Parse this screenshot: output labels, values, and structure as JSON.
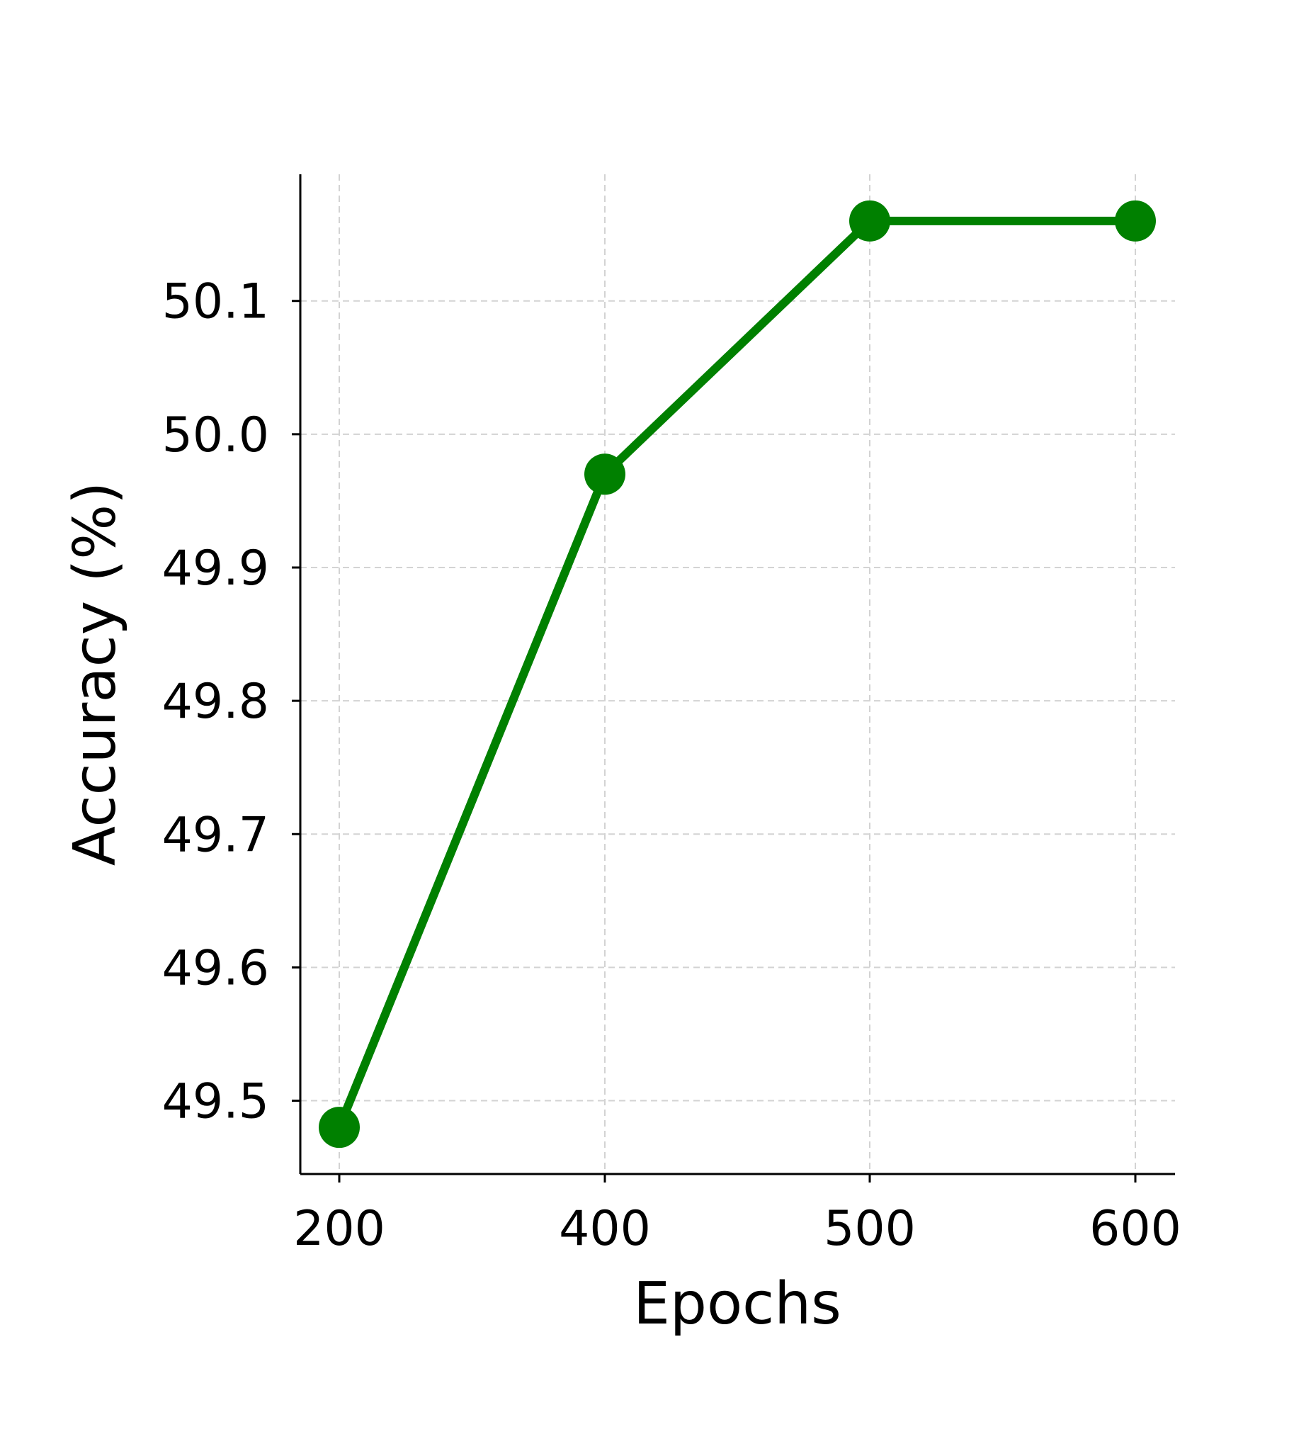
{
  "chart_data": {
    "type": "line",
    "title": "",
    "xlabel": "Epochs",
    "ylabel": "Accuracy (%)",
    "x_scale": "categorical",
    "categories": [
      "200",
      "400",
      "500",
      "600"
    ],
    "series": [
      {
        "values": [
          49.48,
          49.97,
          50.16,
          50.16
        ],
        "color": "#008000",
        "marker": "circle"
      }
    ],
    "ylim": [
      49.445,
      50.195
    ],
    "yticks": [
      49.5,
      49.6,
      49.7,
      49.8,
      49.9,
      50.0,
      50.1
    ],
    "ytick_labels": [
      "49.5",
      "49.6",
      "49.7",
      "49.8",
      "49.9",
      "50.0",
      "50.1"
    ],
    "grid": true,
    "grid_style": "dashed",
    "legend": "none"
  }
}
